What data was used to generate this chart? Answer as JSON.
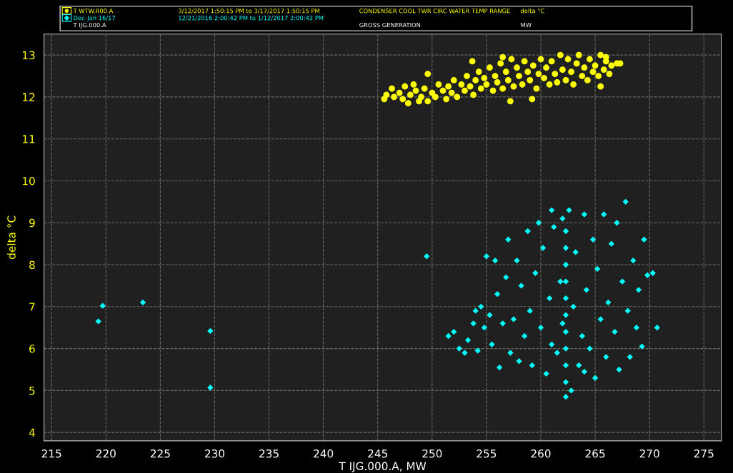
{
  "chart_data": {
    "type": "scatter",
    "xlabel": "T IJG.000.A, MW",
    "ylabel": "delta °C",
    "xlim": [
      214.3,
      276.6
    ],
    "ylim": [
      3.8,
      13.5
    ],
    "xticks": [
      215,
      220,
      225,
      230,
      235,
      240,
      245,
      250,
      255,
      260,
      265,
      270,
      275
    ],
    "yticks": [
      4,
      5,
      6,
      7,
      8,
      9,
      10,
      11,
      12,
      13
    ],
    "grid": true,
    "legend": "top",
    "annotations": [
      "3/12/2017 1:50:15 PM to 3/17/2017 1:50:15 PM",
      "CONDENSER COOL TWR CIRC WATER TEMP RANGE",
      "delta °C",
      "12/21/2016 2:00:42 PM to 1/12/2017 2:00:42 PM",
      "T IJG.000.A",
      "GROSS GENERATION",
      "MW"
    ],
    "series": [
      {
        "name": "T WTW.R00.A",
        "color": "#ffff00",
        "marker": "circle",
        "x": [
          245.6,
          245.8,
          246.3,
          246.5,
          247.0,
          247.3,
          247.5,
          247.8,
          248.0,
          248.3,
          248.5,
          248.8,
          249.0,
          249.3,
          249.6,
          250.0,
          250.3,
          250.6,
          251.0,
          251.3,
          251.5,
          251.8,
          252.0,
          252.3,
          252.7,
          253.0,
          253.2,
          253.5,
          253.8,
          254.0,
          254.3,
          254.5,
          254.8,
          255.0,
          255.3,
          255.6,
          255.8,
          256.0,
          256.3,
          256.5,
          256.8,
          257.0,
          257.3,
          257.5,
          257.8,
          258.0,
          258.3,
          258.5,
          258.8,
          259.0,
          259.3,
          259.6,
          259.8,
          260.0,
          260.3,
          260.5,
          260.8,
          261.0,
          261.3,
          261.5,
          261.8,
          262.0,
          262.3,
          262.5,
          262.8,
          263.0,
          263.3,
          263.5,
          263.8,
          264.0,
          264.3,
          264.5,
          264.8,
          265.0,
          265.3,
          265.5,
          265.8,
          266.0,
          266.3,
          266.5,
          267.0,
          267.3,
          265.5,
          259.2,
          257.2,
          249.6,
          253.7,
          256.5,
          266.0
        ],
        "values": [
          11.95,
          12.05,
          12.2,
          12.0,
          12.1,
          11.95,
          12.25,
          11.85,
          12.05,
          12.3,
          12.15,
          11.9,
          12.0,
          12.2,
          11.9,
          12.1,
          12.0,
          12.3,
          12.15,
          11.95,
          12.25,
          12.1,
          12.4,
          12.0,
          12.3,
          12.15,
          12.5,
          12.25,
          12.05,
          12.4,
          12.6,
          12.2,
          12.45,
          12.3,
          12.7,
          12.15,
          12.5,
          12.35,
          12.8,
          12.2,
          12.6,
          12.4,
          12.9,
          12.25,
          12.7,
          12.5,
          12.3,
          12.85,
          12.6,
          12.4,
          12.75,
          12.2,
          12.55,
          12.9,
          12.45,
          12.7,
          12.3,
          12.85,
          12.55,
          12.35,
          13.0,
          12.65,
          12.4,
          12.9,
          12.6,
          12.3,
          12.8,
          13.0,
          12.5,
          12.7,
          12.4,
          12.9,
          12.6,
          12.75,
          12.5,
          13.0,
          12.65,
          12.85,
          12.55,
          12.75,
          12.8,
          12.8,
          12.25,
          11.95,
          11.9,
          12.55,
          12.85,
          12.95,
          12.95
        ]
      },
      {
        "name": "Dec-Jan 16/17",
        "color": "#00ffff",
        "marker": "diamond",
        "x": [
          219.3,
          219.7,
          223.4,
          229.6,
          229.6,
          249.5,
          251.5,
          252.0,
          252.5,
          253.0,
          253.3,
          253.8,
          254.0,
          254.2,
          254.5,
          254.8,
          255.0,
          255.3,
          255.5,
          255.8,
          256.0,
          256.2,
          256.5,
          256.8,
          257.0,
          257.2,
          257.5,
          257.8,
          258.0,
          258.2,
          258.5,
          258.8,
          259.0,
          259.2,
          259.5,
          259.8,
          260.0,
          260.2,
          260.5,
          260.8,
          261.0,
          261.2,
          261.5,
          261.8,
          262.0,
          262.0,
          262.3,
          262.3,
          262.3,
          262.3,
          262.3,
          262.3,
          262.3,
          262.3,
          262.3,
          262.3,
          262.3,
          262.6,
          262.8,
          263.0,
          263.2,
          263.5,
          263.8,
          264.0,
          264.2,
          264.5,
          264.8,
          265.0,
          265.2,
          265.5,
          265.8,
          266.0,
          266.2,
          266.5,
          266.8,
          267.0,
          267.2,
          267.5,
          267.8,
          268.0,
          268.2,
          268.5,
          268.8,
          269.0,
          269.3,
          269.5,
          269.8,
          270.3,
          270.7,
          264.0,
          261.0
        ],
        "values": [
          6.65,
          7.02,
          7.1,
          6.42,
          5.07,
          8.2,
          6.3,
          6.4,
          6.0,
          5.9,
          6.2,
          6.6,
          6.9,
          5.95,
          7.0,
          6.5,
          8.2,
          6.8,
          6.1,
          8.1,
          7.3,
          5.55,
          6.6,
          7.7,
          8.6,
          5.9,
          6.7,
          8.1,
          5.7,
          7.5,
          6.3,
          8.8,
          6.9,
          5.6,
          7.8,
          9.0,
          6.5,
          8.4,
          5.4,
          7.2,
          6.1,
          8.9,
          5.9,
          7.6,
          9.1,
          6.6,
          4.85,
          5.2,
          5.6,
          6.0,
          6.4,
          6.8,
          7.2,
          7.6,
          8.0,
          8.4,
          8.8,
          9.3,
          5.0,
          7.0,
          8.3,
          5.6,
          6.3,
          9.2,
          7.4,
          6.0,
          8.6,
          5.3,
          7.9,
          6.7,
          9.2,
          5.8,
          7.1,
          8.5,
          6.4,
          9.0,
          5.5,
          7.6,
          9.5,
          6.9,
          5.8,
          8.1,
          6.5,
          7.4,
          6.05,
          8.6,
          7.75,
          7.8,
          6.5,
          5.45,
          9.3
        ]
      }
    ]
  }
}
